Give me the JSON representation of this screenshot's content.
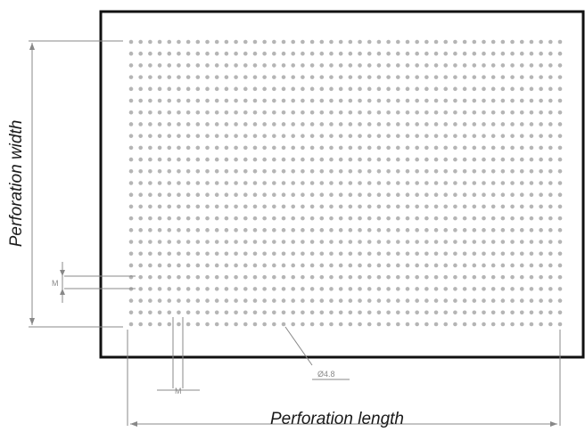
{
  "diagram": {
    "labels": {
      "width": "Perforation width",
      "length": "Perforation length",
      "hole_diameter": "Ø4.8",
      "pitch_marker": "M"
    },
    "colors": {
      "frame": "#111111",
      "holes": "#b5b5b5",
      "dimension_lines": "#888888",
      "text": "#1a1a1a"
    },
    "hole_grid": {
      "columns": 46,
      "rows": 25
    }
  }
}
